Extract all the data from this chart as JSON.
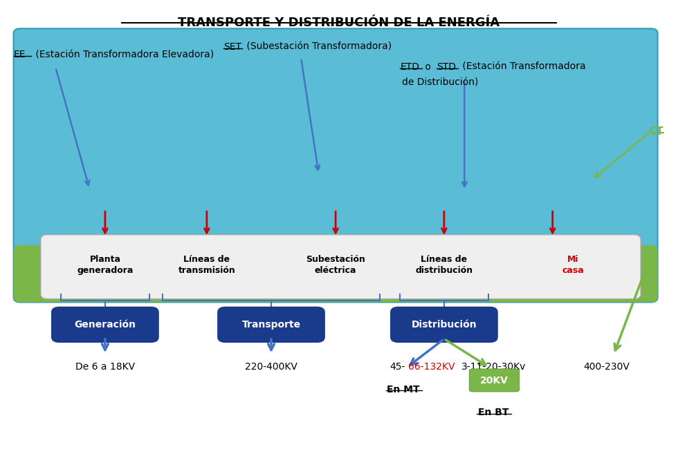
{
  "title": "TRANSPORTE Y DISTRIBUCIÓN DE LA ENERGÍA",
  "bg_color": "#ffffff",
  "scene_bg": "#5bbcd6",
  "ground_color": "#7ab648",
  "label_EE": "EE",
  "label_EE_rest": " (Estación Transformadora Elevadora)",
  "label_SET": "SET",
  "label_SET_rest": " (Subestación Transformadora)",
  "label_ETD": "ETD",
  "label_o": " o ",
  "label_STD": "STD",
  "label_ETD_rest1": " (Estación Transformadora",
  "label_ETD_rest2": "de Distribución)",
  "label_CT": "CT",
  "box_labels": [
    "Planta\ngeneradora",
    "Líneas de\ntransmisión",
    "Subestación\neléctrica",
    "Líneas de\ndistribución",
    "Mi\ncasa"
  ],
  "box_label_colors": [
    "#000000",
    "#000000",
    "#000000",
    "#000000",
    "#cc0000"
  ],
  "blue_boxes": [
    "Generación",
    "Transporte",
    "Distribución"
  ],
  "blue_box_color": "#1a3a8c",
  "blue_box_text_color": "#ffffff",
  "en_mt_label": "En MT",
  "en_bt_label": "En BT",
  "box_20kv": "20KV",
  "box_20kv_color": "#7ab648",
  "arrow_blue_color": "#4472c4",
  "arrow_red_color": "#cc0000",
  "arrow_green_color": "#7ab648"
}
